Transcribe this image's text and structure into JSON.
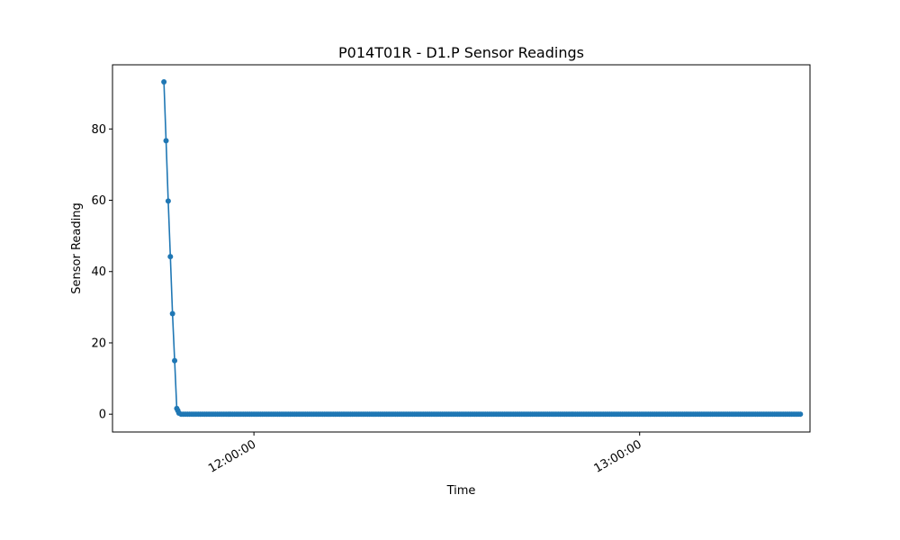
{
  "chart_data": {
    "type": "line",
    "title": "P014T01R - D1.P Sensor Readings",
    "xlabel": "Time",
    "ylabel": "Sensor Reading",
    "x_axis": {
      "kind": "time",
      "range": [
        "11:38:00",
        "13:26:30"
      ],
      "ticks": [
        "12:00:00",
        "13:00:00"
      ]
    },
    "y_axis": {
      "range": [
        -5,
        98
      ],
      "ticks": [
        0,
        20,
        40,
        60,
        80
      ]
    },
    "grid": false,
    "legend": "none",
    "color": "#1f77b4",
    "series": [
      {
        "x": [
          "11:46:00",
          "11:46:20",
          "11:46:40",
          "11:47:00",
          "11:47:20",
          "11:47:40",
          "11:48:00",
          "11:48:10",
          "11:48:20",
          "11:48:40"
        ],
        "values": [
          93.2,
          76.7,
          59.8,
          44.2,
          28.2,
          15.0,
          1.6,
          1.0,
          0.3,
          0.0
        ],
        "continue_to": "13:25:00",
        "continue_step_seconds": 20,
        "continue_value": 0
      }
    ]
  }
}
